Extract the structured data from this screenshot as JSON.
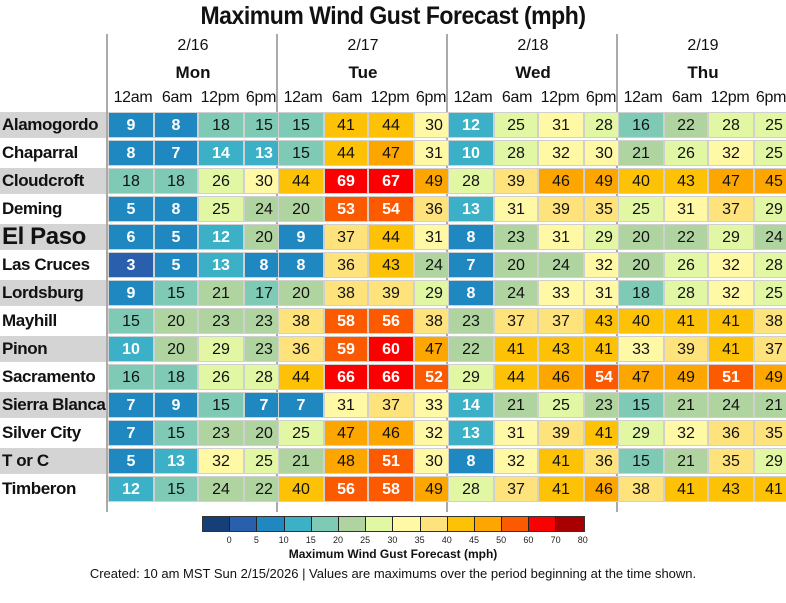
{
  "chart_data": {
    "type": "heatmap",
    "title": "Maximum Wind Gust Forecast (mph)",
    "days": [
      {
        "date": "2/16",
        "day": "Mon"
      },
      {
        "date": "2/17",
        "day": "Tue"
      },
      {
        "date": "2/18",
        "day": "Wed"
      },
      {
        "date": "2/19",
        "day": "Thu"
      }
    ],
    "times": [
      "12am",
      "6am",
      "12pm",
      "6pm"
    ],
    "columns": [
      "2/16 12am",
      "2/16 6am",
      "2/16 12pm",
      "2/16 6pm",
      "2/17 12am",
      "2/17 6am",
      "2/17 12pm",
      "2/17 6pm",
      "2/18 12am",
      "2/18 6am",
      "2/18 12pm",
      "2/18 6pm",
      "2/19 12am",
      "2/19 6am",
      "2/19 12pm",
      "2/19 6pm"
    ],
    "rows": [
      {
        "location": "Alamogordo",
        "values": [
          9,
          8,
          18,
          15,
          15,
          41,
          44,
          30,
          12,
          25,
          31,
          28,
          16,
          22,
          28,
          25
        ]
      },
      {
        "location": "Chaparral",
        "values": [
          8,
          7,
          14,
          13,
          15,
          44,
          47,
          31,
          10,
          28,
          32,
          30,
          21,
          26,
          32,
          25
        ]
      },
      {
        "location": "Cloudcroft",
        "values": [
          18,
          18,
          26,
          30,
          44,
          69,
          67,
          49,
          28,
          39,
          46,
          49,
          40,
          43,
          47,
          45
        ]
      },
      {
        "location": "Deming",
        "values": [
          5,
          8,
          25,
          24,
          20,
          53,
          54,
          36,
          13,
          31,
          39,
          35,
          25,
          31,
          37,
          29
        ]
      },
      {
        "location": "El Paso",
        "values": [
          6,
          5,
          12,
          20,
          9,
          37,
          44,
          31,
          8,
          23,
          31,
          29,
          20,
          22,
          29,
          24
        ]
      },
      {
        "location": "Las Cruces",
        "values": [
          3,
          5,
          13,
          8,
          8,
          36,
          43,
          24,
          7,
          20,
          24,
          32,
          20,
          26,
          32,
          28
        ]
      },
      {
        "location": "Lordsburg",
        "values": [
          9,
          15,
          21,
          17,
          20,
          38,
          39,
          29,
          8,
          24,
          33,
          31,
          18,
          28,
          32,
          25
        ]
      },
      {
        "location": "Mayhill",
        "values": [
          15,
          20,
          23,
          23,
          38,
          58,
          56,
          38,
          23,
          37,
          37,
          43,
          40,
          41,
          41,
          38
        ]
      },
      {
        "location": "Pinon",
        "values": [
          10,
          20,
          29,
          23,
          36,
          59,
          60,
          47,
          22,
          41,
          43,
          41,
          33,
          39,
          41,
          37
        ]
      },
      {
        "location": "Sacramento",
        "values": [
          16,
          18,
          26,
          28,
          44,
          66,
          66,
          52,
          29,
          44,
          46,
          54,
          47,
          49,
          51,
          49
        ]
      },
      {
        "location": "Sierra Blanca",
        "values": [
          7,
          9,
          15,
          7,
          7,
          31,
          37,
          33,
          14,
          21,
          25,
          23,
          15,
          21,
          24,
          21
        ]
      },
      {
        "location": "Silver City",
        "values": [
          7,
          15,
          23,
          20,
          25,
          47,
          46,
          32,
          13,
          31,
          39,
          41,
          29,
          32,
          36,
          35
        ]
      },
      {
        "location": "T or C",
        "values": [
          5,
          13,
          32,
          25,
          21,
          48,
          51,
          30,
          8,
          32,
          41,
          36,
          15,
          21,
          35,
          29
        ]
      },
      {
        "location": "Timberon",
        "values": [
          12,
          15,
          24,
          22,
          40,
          56,
          58,
          49,
          28,
          37,
          41,
          46,
          38,
          41,
          43,
          41
        ]
      }
    ],
    "colorscale": {
      "bounds": [
        0,
        5,
        10,
        15,
        20,
        25,
        30,
        35,
        40,
        45,
        50,
        60,
        70,
        80
      ],
      "colors": [
        "#163f77",
        "#2a5fae",
        "#1f88c0",
        "#3bb0c6",
        "#7fcab5",
        "#b0d4a0",
        "#e2f7a4",
        "#fff9a6",
        "#fee27c",
        "#fdc106",
        "#fda600",
        "#fc5a00",
        "#fb0000",
        "#a80000"
      ],
      "tick_labels": [
        "0",
        "5",
        "10",
        "15",
        "20",
        "25",
        "30",
        "35",
        "40",
        "45",
        "50",
        "60",
        "70",
        "80"
      ],
      "label": "Maximum Wind Gust Forecast (mph)"
    }
  },
  "footer": "Created: 10 am MST Sun 2/15/2026  |  Values are maximums over the period beginning at the time shown."
}
